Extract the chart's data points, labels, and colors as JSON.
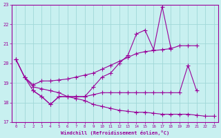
{
  "line1_x": [
    0,
    1,
    2,
    3,
    4,
    5,
    6,
    7,
    8,
    9,
    10,
    11,
    12,
    13,
    14,
    15,
    16,
    17,
    18,
    19,
    20,
    21,
    22,
    23
  ],
  "line1_y": [
    20.2,
    19.3,
    18.6,
    18.3,
    17.9,
    18.3,
    18.3,
    18.3,
    18.3,
    18.8,
    19.3,
    19.5,
    20.0,
    20.4,
    21.5,
    21.7,
    20.7,
    22.9,
    20.8,
    null,
    null,
    null,
    null,
    null
  ],
  "line2_x": [
    0,
    1,
    2,
    3,
    4,
    5,
    6,
    7,
    8,
    9,
    10,
    11,
    12,
    13,
    14,
    15,
    16,
    17,
    18,
    19,
    20,
    21,
    22,
    23
  ],
  "line2_y": [
    20.2,
    19.3,
    18.9,
    19.1,
    19.1,
    19.15,
    19.2,
    19.3,
    19.4,
    19.5,
    19.7,
    19.9,
    20.1,
    20.3,
    20.5,
    20.6,
    20.65,
    20.7,
    20.75,
    20.9,
    20.9,
    20.9,
    null,
    null
  ],
  "line3_x": [
    2,
    3,
    4,
    5,
    6,
    7,
    8,
    9,
    10,
    11,
    12,
    13,
    14,
    15,
    16,
    17,
    18,
    19,
    20,
    21
  ],
  "line3_y": [
    18.6,
    18.3,
    17.9,
    18.3,
    18.3,
    18.3,
    18.3,
    18.4,
    18.5,
    18.5,
    18.5,
    18.5,
    18.5,
    18.5,
    18.5,
    18.5,
    18.5,
    18.5,
    19.9,
    18.6
  ],
  "line4_x": [
    0,
    1,
    2,
    3,
    4,
    5,
    6,
    7,
    8,
    9,
    10,
    11,
    12,
    13,
    14,
    15,
    16,
    17,
    18,
    19,
    20,
    21,
    22,
    23
  ],
  "line4_y": [
    20.2,
    19.3,
    18.8,
    18.7,
    18.6,
    18.5,
    18.3,
    18.2,
    18.1,
    17.9,
    17.8,
    17.7,
    17.6,
    17.55,
    17.5,
    17.5,
    17.45,
    17.4,
    17.4,
    17.4,
    17.4,
    17.35,
    17.3,
    17.3
  ],
  "color": "#990099",
  "bg_color": "#c8f0f0",
  "grid_color": "#a0d8d8",
  "xlabel": "Windchill (Refroidissement éolien,°C)",
  "xlim": [
    -0.5,
    23.5
  ],
  "ylim": [
    17,
    23
  ],
  "yticks": [
    17,
    18,
    19,
    20,
    21,
    22,
    23
  ],
  "xticks": [
    0,
    1,
    2,
    3,
    4,
    5,
    6,
    7,
    8,
    9,
    10,
    11,
    12,
    13,
    14,
    15,
    16,
    17,
    18,
    19,
    20,
    21,
    22,
    23
  ],
  "markersize": 2.5,
  "linewidth": 0.8
}
